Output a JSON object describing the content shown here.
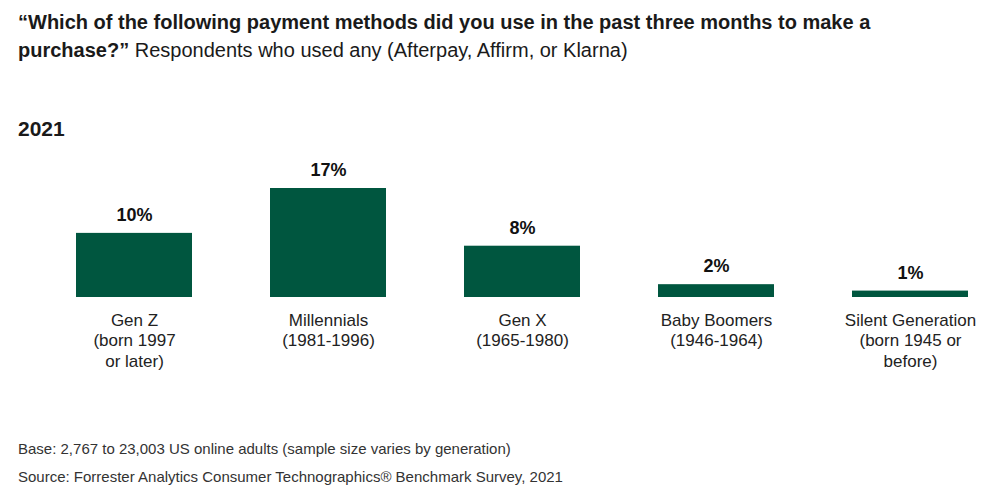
{
  "chart_data": {
    "type": "bar",
    "title": "“Which of the following payment methods did you use in the past three months to make a purchase?”",
    "subtitle": "Respondents who used any (Afterpay, Affirm, or Klarna)",
    "annotations": [
      "2021"
    ],
    "categories": [
      "Gen Z\n(born 1997\nor later)",
      "Millennials\n(1981-1996)",
      "Gen X\n(1965-1980)",
      "Baby Boomers\n(1946-1964)",
      "Silent Generation\n(born 1945 or\nbefore)"
    ],
    "values": [
      10,
      17,
      8,
      2,
      1
    ],
    "value_labels": [
      "10%",
      "17%",
      "8%",
      "2%",
      "1%"
    ],
    "color": "#00563f",
    "ylim": [
      0,
      17
    ],
    "data_labels": true,
    "tick_labels": "x",
    "grid": false,
    "caption": [
      "Base: 2,767 to 23,003 US online adults (sample size varies by generation)",
      "Source: Forrester Analytics Consumer Technographics® Benchmark Survey, 2021"
    ]
  }
}
